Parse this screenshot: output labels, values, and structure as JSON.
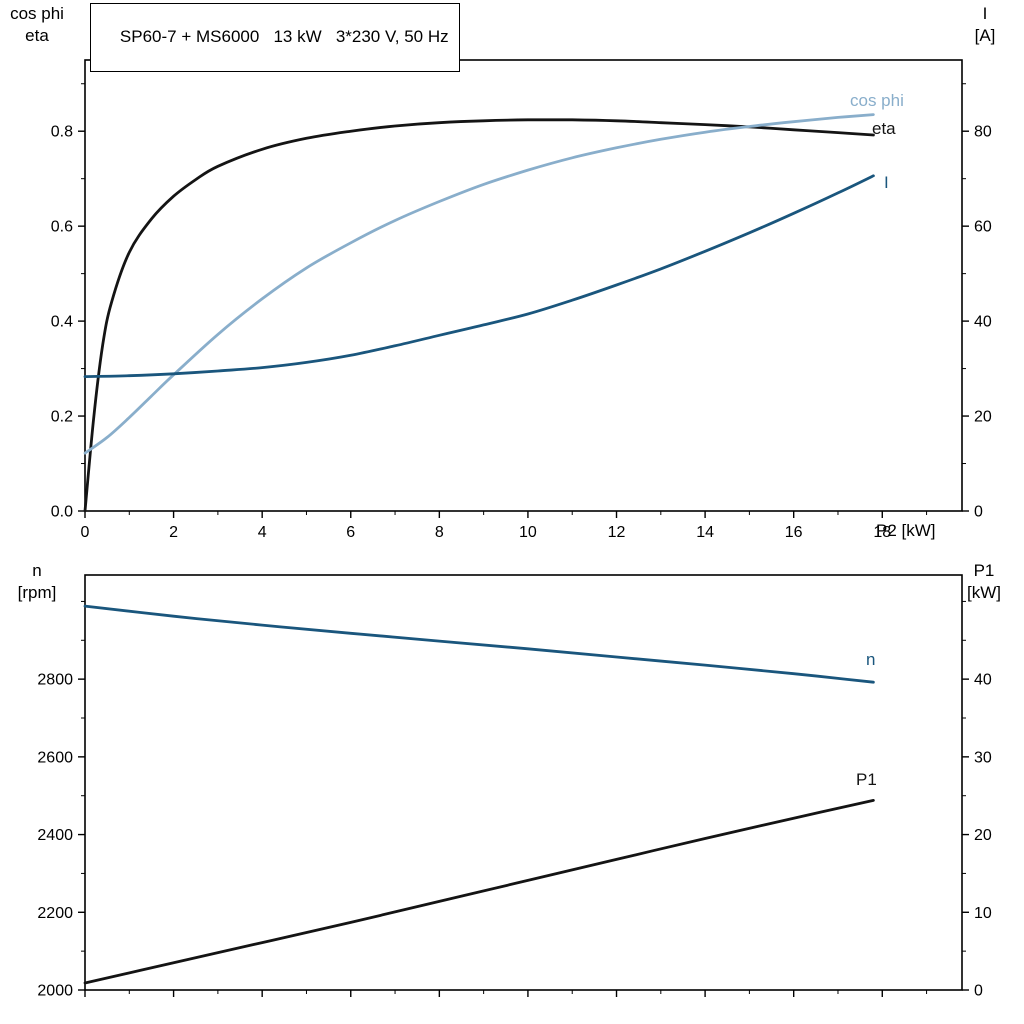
{
  "title_box": {
    "text": "SP60-7 + MS6000   13 kW   3*230 V, 50 Hz"
  },
  "colors": {
    "black": "#141414",
    "dark_blue": "#1a567d",
    "light_blue": "#89aecb",
    "axis": "#000000",
    "background": "#ffffff"
  },
  "chart_data": [
    {
      "type": "line",
      "title": "SP60-7 + MS6000 13 kW 3*230 V, 50 Hz",
      "x_axis": {
        "label": "P2 [kW]",
        "range": [
          0,
          19.8
        ],
        "major_ticks": [
          0,
          2,
          4,
          6,
          8,
          10,
          12,
          14,
          16,
          18
        ],
        "major_labels": [
          "0",
          "2",
          "4",
          "6",
          "8",
          "10",
          "12",
          "14",
          "16",
          "18"
        ],
        "minor_ticks": [
          1,
          3,
          5,
          7,
          9,
          11,
          13,
          15,
          17,
          19
        ],
        "show_labels": true
      },
      "y_left": {
        "label_lines": [
          "cos phi",
          "eta"
        ],
        "range": [
          0,
          0.95
        ],
        "major_ticks": [
          0,
          0.2,
          0.4,
          0.6,
          0.8
        ],
        "major_labels": [
          "0.0",
          "0.2",
          "0.4",
          "0.6",
          "0.8"
        ],
        "minor_ticks": [
          0.1,
          0.3,
          0.5,
          0.7,
          0.9
        ]
      },
      "y_right": {
        "label_lines": [
          "I",
          "[A]"
        ],
        "range": [
          0,
          95
        ],
        "major_ticks": [
          0,
          20,
          40,
          60,
          80
        ],
        "major_labels": [
          "0",
          "20",
          "40",
          "60",
          "80"
        ],
        "minor_ticks": [
          10,
          30,
          50,
          70,
          90
        ]
      },
      "series": [
        {
          "name": "eta",
          "label": "eta",
          "axis": "left",
          "color": "black",
          "points": [
            [
              0,
              0
            ],
            [
              0.2,
              0.2
            ],
            [
              0.4,
              0.35
            ],
            [
              0.6,
              0.44
            ],
            [
              1,
              0.545
            ],
            [
              1.5,
              0.615
            ],
            [
              2,
              0.663
            ],
            [
              2.5,
              0.698
            ],
            [
              3,
              0.726
            ],
            [
              4,
              0.762
            ],
            [
              5,
              0.785
            ],
            [
              6,
              0.8
            ],
            [
              7,
              0.811
            ],
            [
              8,
              0.818
            ],
            [
              9,
              0.822
            ],
            [
              10,
              0.824
            ],
            [
              11,
              0.824
            ],
            [
              12,
              0.822
            ],
            [
              13,
              0.818
            ],
            [
              14,
              0.814
            ],
            [
              15,
              0.809
            ],
            [
              16,
              0.803
            ],
            [
              17,
              0.797
            ],
            [
              17.8,
              0.792
            ]
          ]
        },
        {
          "name": "cos phi",
          "label": "cos phi",
          "axis": "left",
          "color": "light_blue",
          "points": [
            [
              0,
              0.122
            ],
            [
              0.5,
              0.155
            ],
            [
              1,
              0.197
            ],
            [
              1.5,
              0.242
            ],
            [
              2,
              0.287
            ],
            [
              3,
              0.372
            ],
            [
              4,
              0.447
            ],
            [
              5,
              0.512
            ],
            [
              6,
              0.565
            ],
            [
              7,
              0.612
            ],
            [
              8,
              0.652
            ],
            [
              9,
              0.688
            ],
            [
              10,
              0.718
            ],
            [
              11,
              0.744
            ],
            [
              12,
              0.765
            ],
            [
              13,
              0.783
            ],
            [
              14,
              0.798
            ],
            [
              15,
              0.81
            ],
            [
              16,
              0.82
            ],
            [
              17,
              0.829
            ],
            [
              17.8,
              0.835
            ]
          ]
        },
        {
          "name": "I",
          "label": "I",
          "axis": "right",
          "color": "dark_blue",
          "points": [
            [
              0,
              28.3
            ],
            [
              1,
              28.5
            ],
            [
              2,
              28.9
            ],
            [
              3,
              29.5
            ],
            [
              4,
              30.2
            ],
            [
              5,
              31.3
            ],
            [
              6,
              32.8
            ],
            [
              7,
              34.8
            ],
            [
              8,
              37
            ],
            [
              9,
              39.2
            ],
            [
              10,
              41.5
            ],
            [
              11,
              44.4
            ],
            [
              12,
              47.6
            ],
            [
              13,
              51
            ],
            [
              14,
              54.7
            ],
            [
              15,
              58.6
            ],
            [
              16,
              62.7
            ],
            [
              17,
              67
            ],
            [
              17.8,
              70.6
            ]
          ]
        }
      ]
    },
    {
      "type": "line",
      "title": "",
      "x_axis": {
        "label": "",
        "range": [
          0,
          19.8
        ],
        "major_ticks": [
          0,
          2,
          4,
          6,
          8,
          10,
          12,
          14,
          16,
          18
        ],
        "major_labels": [],
        "minor_ticks": [
          1,
          3,
          5,
          7,
          9,
          11,
          13,
          15,
          17,
          19
        ],
        "show_labels": false
      },
      "y_left": {
        "label_lines": [
          "n",
          "[rpm]"
        ],
        "range": [
          2000,
          3068
        ],
        "major_ticks": [
          2000,
          2200,
          2400,
          2600,
          2800
        ],
        "major_labels": [
          "2000",
          "2200",
          "2400",
          "2600",
          "2800"
        ],
        "minor_ticks": [
          2100,
          2300,
          2500,
          2700,
          2900,
          3000
        ]
      },
      "y_right": {
        "label_lines": [
          "P1",
          "[kW]"
        ],
        "range": [
          0,
          53.4
        ],
        "major_ticks": [
          0,
          10,
          20,
          30,
          40
        ],
        "major_labels": [
          "0",
          "10",
          "20",
          "30",
          "40"
        ],
        "minor_ticks": [
          5,
          15,
          25,
          35,
          45,
          50
        ]
      },
      "series": [
        {
          "name": "n",
          "label": "n",
          "axis": "left",
          "color": "dark_blue",
          "points": [
            [
              0,
              2988
            ],
            [
              2,
              2962
            ],
            [
              4,
              2939
            ],
            [
              6,
              2918
            ],
            [
              8,
              2898
            ],
            [
              10,
              2878
            ],
            [
              12,
              2857
            ],
            [
              14,
              2836
            ],
            [
              16,
              2814
            ],
            [
              17,
              2802
            ],
            [
              17.8,
              2792
            ]
          ]
        },
        {
          "name": "P1",
          "label": "P1",
          "axis": "right",
          "color": "black",
          "points": [
            [
              0,
              0.9
            ],
            [
              2,
              3.5
            ],
            [
              4,
              6.1
            ],
            [
              6,
              8.7
            ],
            [
              8,
              11.4
            ],
            [
              10,
              14.1
            ],
            [
              12,
              16.8
            ],
            [
              14,
              19.5
            ],
            [
              16,
              22.1
            ],
            [
              17.8,
              24.4
            ]
          ]
        }
      ]
    }
  ]
}
